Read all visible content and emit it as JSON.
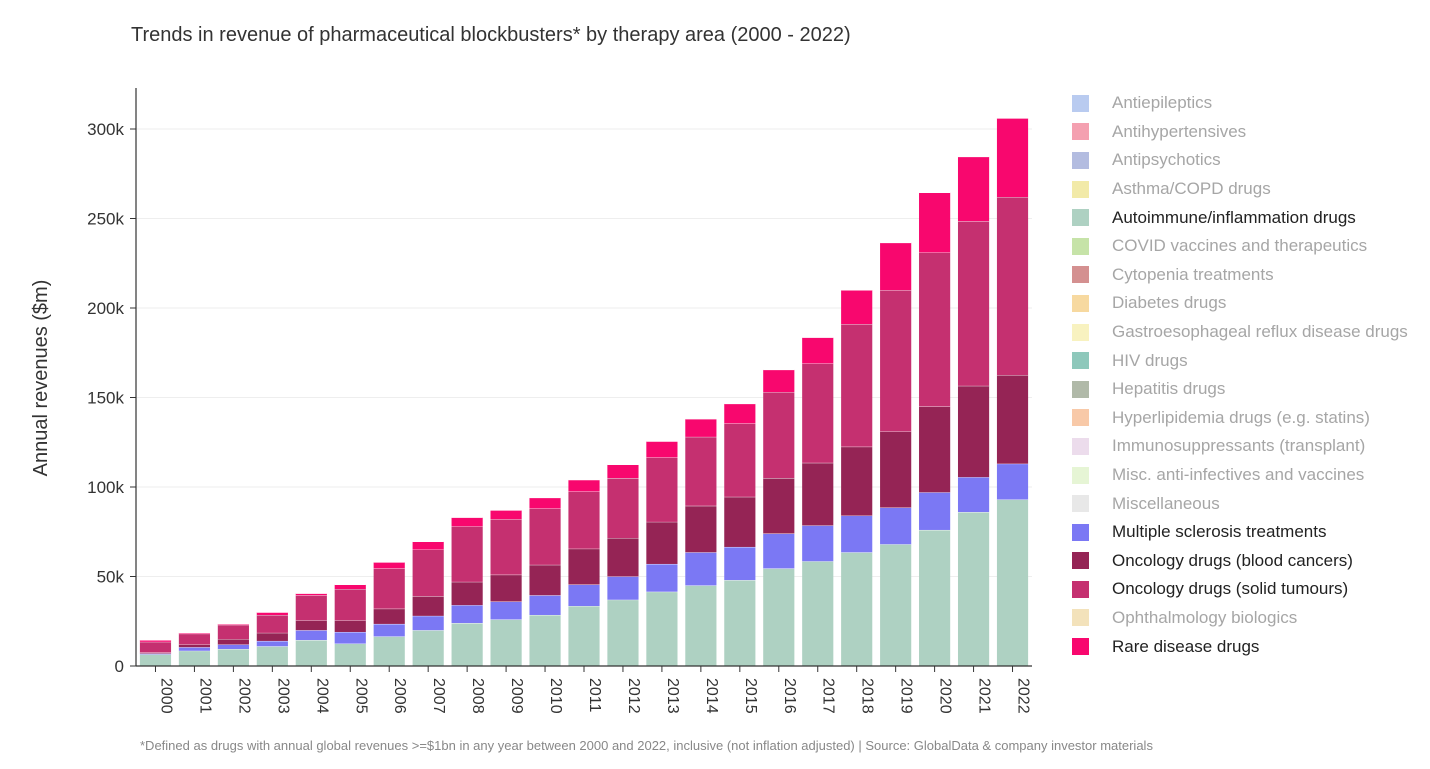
{
  "chart_data": {
    "type": "bar",
    "stacked": true,
    "title": "Trends in revenue of pharmaceutical blockbusters* by therapy area (2000 - 2022)",
    "ylabel": "Annual revenues ($m)",
    "xlabel": "",
    "ylim": [
      0,
      320000
    ],
    "yticks": [
      0,
      50000,
      100000,
      150000,
      200000,
      250000,
      300000
    ],
    "ytick_labels": [
      "0",
      "50k",
      "100k",
      "150k",
      "200k",
      "250k",
      "300k"
    ],
    "grid": true,
    "legend_position": "right",
    "footnote": "*Defined as drugs with annual global revenues >=$1bn in any year between 2000 and 2022, inclusive (not inflation adjusted) | Source: GlobalData & company investor materials",
    "categories": [
      "2000",
      "2001",
      "2002",
      "2003",
      "2004",
      "2005",
      "2006",
      "2007",
      "2008",
      "2009",
      "2010",
      "2011",
      "2012",
      "2013",
      "2014",
      "2015",
      "2016",
      "2017",
      "2018",
      "2019",
      "2020",
      "2021",
      "2022"
    ],
    "legend": [
      {
        "name": "Antiepileptics",
        "color": "#b9cbf0",
        "active": false
      },
      {
        "name": "Antihypertensives",
        "color": "#f4a0b0",
        "active": false
      },
      {
        "name": "Antipsychotics",
        "color": "#b3bce0",
        "active": false
      },
      {
        "name": "Asthma/COPD drugs",
        "color": "#f2eaa8",
        "active": false
      },
      {
        "name": "Autoimmune/inflammation drugs",
        "color": "#aed1c2",
        "active": true
      },
      {
        "name": "COVID vaccines and therapeutics",
        "color": "#c6e3a8",
        "active": false
      },
      {
        "name": "Cytopenia treatments",
        "color": "#d49090",
        "active": false
      },
      {
        "name": "Diabetes drugs",
        "color": "#f7d9a0",
        "active": false
      },
      {
        "name": "Gastroesophageal reflux disease drugs",
        "color": "#f8f2c0",
        "active": false
      },
      {
        "name": "HIV drugs",
        "color": "#8ec8bb",
        "active": false
      },
      {
        "name": "Hepatitis drugs",
        "color": "#b0b9a8",
        "active": false
      },
      {
        "name": "Hyperlipidemia drugs (e.g. statins)",
        "color": "#f8c9a8",
        "active": false
      },
      {
        "name": "Immunosuppressants (transplant)",
        "color": "#ecdcec",
        "active": false
      },
      {
        "name": "Misc. anti-infectives and vaccines",
        "color": "#e6f5d5",
        "active": false
      },
      {
        "name": "Miscellaneous",
        "color": "#e8e8e8",
        "active": false
      },
      {
        "name": "Multiple sclerosis treatments",
        "color": "#7b78f4",
        "active": true
      },
      {
        "name": "Oncology drugs (blood cancers)",
        "color": "#952455",
        "active": true
      },
      {
        "name": "Oncology drugs (solid tumours)",
        "color": "#c53070",
        "active": true
      },
      {
        "name": "Ophthalmology biologics",
        "color": "#f3e2bb",
        "active": false
      },
      {
        "name": "Rare disease drugs",
        "color": "#f8076e",
        "active": true
      }
    ],
    "series": [
      {
        "name": "Autoimmune/inflammation drugs",
        "color": "#aed1c2",
        "values": [
          6500,
          8500,
          9500,
          11000,
          14500,
          12500,
          16500,
          20000,
          24000,
          26000,
          28500,
          33500,
          37000,
          41500,
          45000,
          48000,
          54500,
          58500,
          63500,
          68000,
          76000,
          86000,
          93000
        ]
      },
      {
        "name": "Multiple sclerosis treatments",
        "color": "#7b78f4",
        "values": [
          500,
          2000,
          2500,
          3000,
          5500,
          6500,
          7000,
          8000,
          10000,
          10000,
          11000,
          12000,
          13000,
          15500,
          18500,
          18500,
          19500,
          20000,
          20500,
          20500,
          21000,
          19500,
          20000
        ]
      },
      {
        "name": "Oncology drugs (blood cancers)",
        "color": "#952455",
        "values": [
          500,
          1500,
          3000,
          4500,
          5500,
          6500,
          8500,
          11000,
          13000,
          15000,
          17000,
          20000,
          21500,
          23500,
          26000,
          28000,
          31000,
          35000,
          38500,
          42500,
          48000,
          51000,
          49500
        ]
      },
      {
        "name": "Oncology drugs (solid tumours)",
        "color": "#c53070",
        "values": [
          6000,
          6000,
          8000,
          10000,
          14000,
          17500,
          22500,
          26000,
          31000,
          31000,
          31500,
          32000,
          33500,
          36000,
          38500,
          41000,
          48000,
          55500,
          68500,
          79000,
          86000,
          92000,
          99500
        ]
      },
      {
        "name": "Rare disease drugs",
        "color": "#f8076e",
        "values": [
          1000,
          500,
          500,
          1500,
          1000,
          2500,
          3500,
          4500,
          5000,
          5000,
          6000,
          6500,
          7500,
          9000,
          10000,
          11000,
          12500,
          14500,
          19000,
          26500,
          33500,
          36000,
          44000
        ]
      }
    ]
  }
}
